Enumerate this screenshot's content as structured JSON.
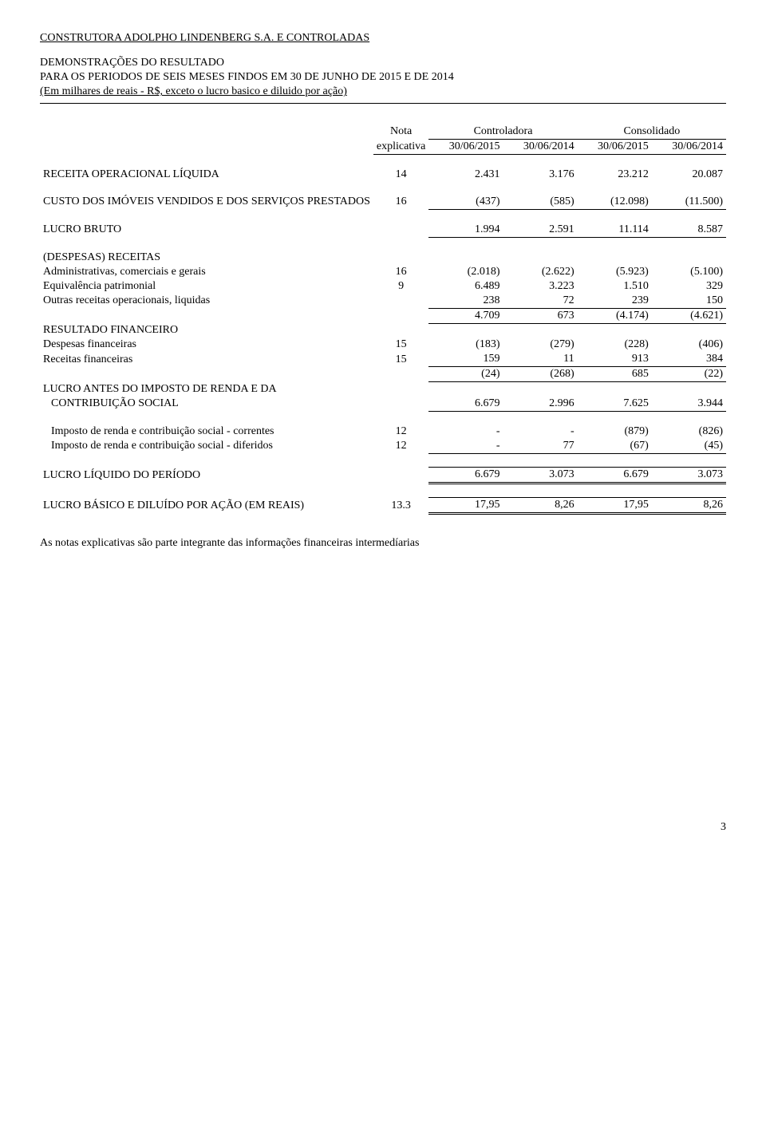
{
  "header": {
    "company": "CONSTRUTORA ADOLPHO LINDENBERG S.A. E CONTROLADAS",
    "line1": "DEMONSTRAÇÕES DO RESULTADO",
    "line2": "PARA OS PERIODOS DE SEIS MESES FINDOS EM 30 DE JUNHO DE 2015 E DE 2014",
    "line3": "(Em milhares de reais - R$, exceto o lucro basico e diluido por ação)"
  },
  "col_headers": {
    "nota_label": "Nota",
    "nota_sub": "explicativa",
    "group1": "Controladora",
    "group2": "Consolidado",
    "d1": "30/06/2015",
    "d2": "30/06/2014",
    "d3": "30/06/2015",
    "d4": "30/06/2014"
  },
  "rows": {
    "receita": {
      "label": "RECEITA OPERACIONAL LÍQUIDA",
      "nota": "14",
      "c1": "2.431",
      "c2": "3.176",
      "c3": "23.212",
      "c4": "20.087"
    },
    "custo": {
      "label": "CUSTO DOS IMÓVEIS VENDIDOS E DOS SERVIÇOS PRESTADOS",
      "nota": "16",
      "c1": "(437)",
      "c2": "(585)",
      "c3": "(12.098)",
      "c4": "(11.500)"
    },
    "lucro_bruto": {
      "label": "LUCRO BRUTO",
      "c1": "1.994",
      "c2": "2.591",
      "c3": "11.114",
      "c4": "8.587"
    },
    "desp_head": {
      "label": "(DESPESAS) RECEITAS"
    },
    "admin": {
      "label": "Administrativas, comerciais e gerais",
      "nota": "16",
      "c1": "(2.018)",
      "c2": "(2.622)",
      "c3": "(5.923)",
      "c4": "(5.100)"
    },
    "equiv": {
      "label": "Equivalência patrimonial",
      "nota": "9",
      "c1": "6.489",
      "c2": "3.223",
      "c3": "1.510",
      "c4": "329"
    },
    "outras": {
      "label": "Outras receitas operacionais, liquidas",
      "c1": "238",
      "c2": "72",
      "c3": "239",
      "c4": "150"
    },
    "desp_sub": {
      "c1": "4.709",
      "c2": "673",
      "c3": "(4.174)",
      "c4": "(4.621)"
    },
    "res_fin_head": {
      "label": "RESULTADO FINANCEIRO"
    },
    "desp_fin": {
      "label": "Despesas financeiras",
      "nota": "15",
      "c1": "(183)",
      "c2": "(279)",
      "c3": "(228)",
      "c4": "(406)"
    },
    "rec_fin": {
      "label": "Receitas financeiras",
      "nota": "15",
      "c1": "159",
      "c2": "11",
      "c3": "913",
      "c4": "384"
    },
    "fin_sub": {
      "c1": "(24)",
      "c2": "(268)",
      "c3": "685",
      "c4": "(22)"
    },
    "lair_head": {
      "label": "LUCRO ANTES DO IMPOSTO DE RENDA E DA"
    },
    "lair": {
      "label": "CONTRIBUIÇÃO SOCIAL",
      "c1": "6.679",
      "c2": "2.996",
      "c3": "7.625",
      "c4": "3.944"
    },
    "ir_corr": {
      "label": "Imposto de renda e contribuição social - correntes",
      "nota": "12",
      "c1": "-",
      "c2": "-",
      "c3": "(879)",
      "c4": "(826)"
    },
    "ir_dif": {
      "label": "Imposto de renda e contribuição social - diferidos",
      "nota": "12",
      "c1": "-",
      "c2": "77",
      "c3": "(67)",
      "c4": "(45)"
    },
    "lucro_liq": {
      "label": "LUCRO LÍQUIDO DO PERÍODO",
      "c1": "6.679",
      "c2": "3.073",
      "c3": "6.679",
      "c4": "3.073"
    },
    "lpa": {
      "label": "LUCRO BÁSICO E DILUÍDO POR AÇÃO (EM REAIS)",
      "nota": "13.3",
      "c1": "17,95",
      "c2": "8,26",
      "c3": "17,95",
      "c4": "8,26"
    }
  },
  "footnote": "As notas explicativas são parte integrante das informações financeiras intermedíarias",
  "pagenum": "3"
}
